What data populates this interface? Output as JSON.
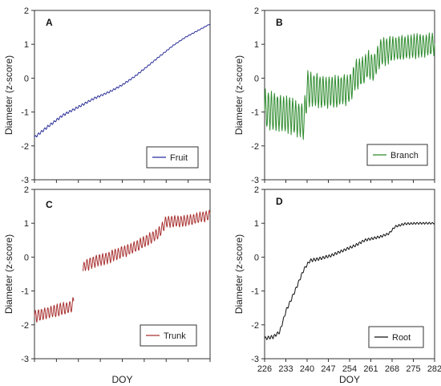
{
  "figure": {
    "xlabel": "DOY",
    "ylabel": "Diameter (z-score)"
  },
  "chart_data": [
    {
      "type": "line",
      "panel": "A",
      "series_name": "Fruit",
      "color": "#2b2f9a",
      "xlim": [
        226,
        282
      ],
      "ylim": [
        -3,
        2
      ],
      "yticks": [
        -3,
        -2,
        -1,
        0,
        1,
        2
      ],
      "xticks": [],
      "legend_placement": "bottom-right",
      "xlabel": "",
      "ylabel": "Diameter (z-score)",
      "trend": [
        [
          226,
          -1.75
        ],
        [
          230,
          -1.45
        ],
        [
          235,
          -1.1
        ],
        [
          240,
          -0.85
        ],
        [
          245,
          -0.6
        ],
        [
          250,
          -0.4
        ],
        [
          254,
          -0.2
        ],
        [
          258,
          0.05
        ],
        [
          262,
          0.35
        ],
        [
          266,
          0.65
        ],
        [
          270,
          0.95
        ],
        [
          274,
          1.2
        ],
        [
          278,
          1.4
        ],
        [
          282,
          1.6
        ]
      ],
      "segments": [
        [
          226,
          282
        ]
      ],
      "daily_amplitude": [
        0.08,
        0.02
      ]
    },
    {
      "type": "line",
      "panel": "B",
      "series_name": "Branch",
      "color": "#2e8b2e",
      "xlim": [
        226,
        282
      ],
      "ylim": [
        -3,
        2
      ],
      "yticks": [
        -3,
        -2,
        -1,
        0,
        1,
        2
      ],
      "xticks": [],
      "legend_placement": "bottom-right",
      "xlabel": "",
      "ylabel": "Diameter (z-score)",
      "trend": [
        [
          226,
          -0.9
        ],
        [
          230,
          -1.0
        ],
        [
          235,
          -1.1
        ],
        [
          239,
          -1.3
        ],
        [
          240,
          -0.3
        ],
        [
          245,
          -0.4
        ],
        [
          250,
          -0.4
        ],
        [
          254,
          -0.3
        ],
        [
          256,
          0.1
        ],
        [
          258,
          0.2
        ],
        [
          260,
          0.4
        ],
        [
          262,
          0.3
        ],
        [
          264,
          0.75
        ],
        [
          268,
          0.85
        ],
        [
          272,
          0.9
        ],
        [
          276,
          0.95
        ],
        [
          282,
          1.0
        ]
      ],
      "segments": [
        [
          226,
          282
        ]
      ],
      "daily_amplitude": [
        1.1,
        0.6
      ]
    },
    {
      "type": "line",
      "panel": "C",
      "series_name": "Trunk",
      "color": "#a93232",
      "xlim": [
        226,
        282
      ],
      "ylim": [
        -3,
        2
      ],
      "yticks": [
        -3,
        -2,
        -1,
        0,
        1,
        2
      ],
      "xticks": [],
      "legend_placement": "bottom-left",
      "xlabel": "",
      "ylabel": "Diameter (z-score)",
      "trend": [
        [
          226,
          -1.75
        ],
        [
          230,
          -1.65
        ],
        [
          234,
          -1.55
        ],
        [
          238,
          -1.45
        ],
        [
          242,
          -0.25
        ],
        [
          246,
          -0.1
        ],
        [
          250,
          0.0
        ],
        [
          254,
          0.15
        ],
        [
          258,
          0.3
        ],
        [
          262,
          0.5
        ],
        [
          266,
          0.75
        ],
        [
          268,
          1.05
        ],
        [
          272,
          1.05
        ],
        [
          276,
          1.1
        ],
        [
          280,
          1.2
        ],
        [
          282,
          1.25
        ]
      ],
      "segments": [
        [
          226,
          238.5
        ],
        [
          241.5,
          282
        ]
      ],
      "daily_amplitude": [
        0.35,
        0.3
      ]
    },
    {
      "type": "line",
      "panel": "D",
      "series_name": "Root",
      "color": "#111111",
      "xlim": [
        226,
        282
      ],
      "ylim": [
        -3,
        2
      ],
      "yticks": [
        -3,
        -2,
        -1,
        0,
        1,
        2
      ],
      "xticks": [
        "226",
        "233",
        "240",
        "247",
        "254",
        "261",
        "268",
        "275",
        "282"
      ],
      "legend_placement": "bottom-right",
      "xlabel": "DOY",
      "ylabel": "Diameter (z-score)",
      "trend": [
        [
          226,
          -2.4
        ],
        [
          229,
          -2.35
        ],
        [
          231,
          -2.2
        ],
        [
          233,
          -1.6
        ],
        [
          236,
          -1.0
        ],
        [
          239,
          -0.35
        ],
        [
          241,
          -0.1
        ],
        [
          244,
          -0.05
        ],
        [
          248,
          0.05
        ],
        [
          252,
          0.2
        ],
        [
          256,
          0.35
        ],
        [
          259,
          0.5
        ],
        [
          264,
          0.6
        ],
        [
          267,
          0.7
        ],
        [
          269,
          0.9
        ],
        [
          272,
          0.98
        ],
        [
          276,
          1.0
        ],
        [
          282,
          1.0
        ]
      ],
      "segments": [
        [
          226,
          282
        ]
      ],
      "daily_amplitude": [
        0.1,
        0.05
      ]
    }
  ]
}
